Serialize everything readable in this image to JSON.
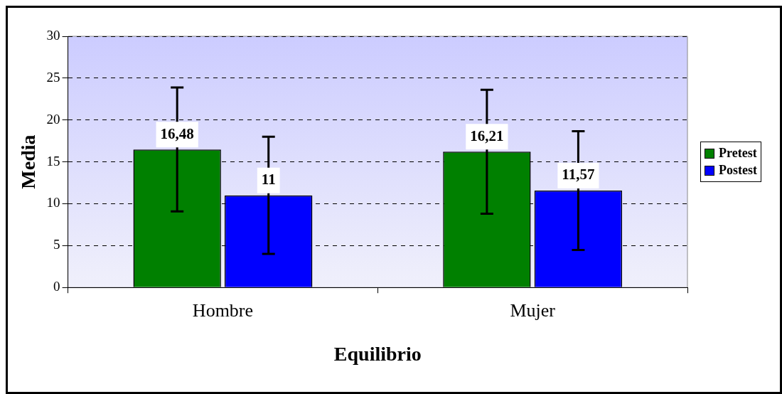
{
  "chart_data": {
    "type": "bar",
    "xlabel": "Equilibrio",
    "ylabel": "Media",
    "categories": [
      "Hombre",
      "Mujer"
    ],
    "series": [
      {
        "name": "Pretest",
        "color": "#008000",
        "values": [
          16.48,
          16.21
        ],
        "errors": [
          7.4,
          7.4
        ],
        "value_labels": [
          "16,48",
          "16,21"
        ]
      },
      {
        "name": "Postest",
        "color": "#0000ff",
        "values": [
          11,
          11.57
        ],
        "errors": [
          7.0,
          7.1
        ],
        "value_labels": [
          "11",
          "11,57"
        ]
      }
    ],
    "ylim": [
      0,
      30
    ],
    "yticks": [
      0,
      5,
      10,
      15,
      20,
      25,
      30
    ],
    "grid": "y",
    "legend": "right"
  }
}
